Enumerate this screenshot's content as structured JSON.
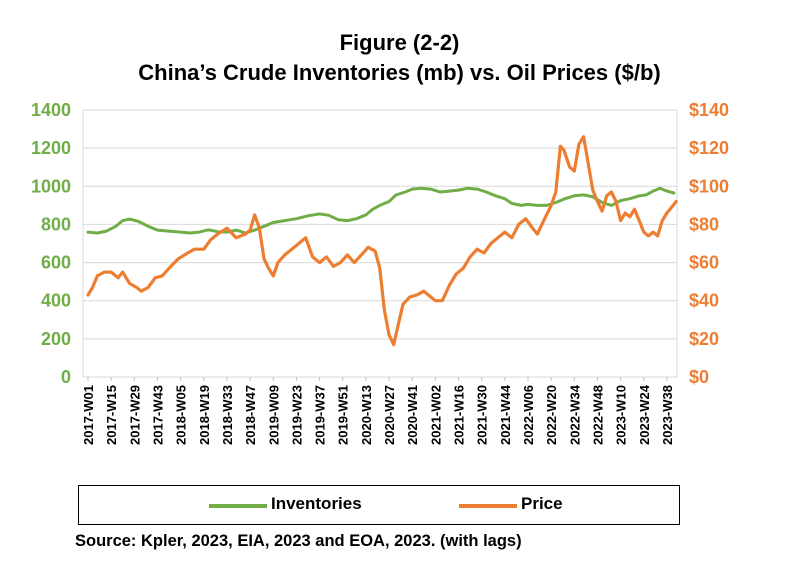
{
  "title": "Figure (2-2)",
  "subtitle": "China’s Crude Inventories (mb) vs. Oil Prices ($/b)",
  "source": "Source: Kpler, 2023, EIA, 2023 and EOA, 2023.  (with lags)",
  "colors": {
    "inventories": "#70AD47",
    "price": "#ED7D31",
    "grid": "#D9D9D9"
  },
  "chart_data": {
    "type": "line",
    "categories": [
      "2017-W01",
      "2017-W15",
      "2017-W29",
      "2017-W43",
      "2018-W05",
      "2018-W19",
      "2018-W33",
      "2018-W47",
      "2019-W09",
      "2019-W23",
      "2019-W37",
      "2019-W51",
      "2020-W13",
      "2020-W27",
      "2020-W41",
      "2021-W02",
      "2021-W16",
      "2021-W30",
      "2021-W44",
      "2022-W06",
      "2022-W20",
      "2022-W34",
      "2022-W48",
      "2023-W10",
      "2023-W24",
      "2023-W38"
    ],
    "y_left": {
      "ticks": [
        "0",
        "200",
        "400",
        "600",
        "800",
        "1000",
        "1200",
        "1400"
      ],
      "range": [
        0,
        1400
      ],
      "color": "#70AD47"
    },
    "y_right": {
      "ticks": [
        "$0",
        "$20",
        "$40",
        "$60",
        "$80",
        "$100",
        "$120",
        "$140"
      ],
      "range": [
        0,
        140
      ],
      "color": "#ED7D31"
    },
    "grid": true,
    "legend_position": "bottom",
    "series": [
      {
        "name": "Inventories",
        "axis": "left",
        "color": "#70AD47",
        "points": [
          [
            0,
            760
          ],
          [
            0.4,
            755
          ],
          [
            0.8,
            765
          ],
          [
            1.2,
            790
          ],
          [
            1.5,
            820
          ],
          [
            1.8,
            828
          ],
          [
            2.2,
            815
          ],
          [
            2.6,
            790
          ],
          [
            3.0,
            770
          ],
          [
            3.5,
            765
          ],
          [
            4.0,
            760
          ],
          [
            4.4,
            755
          ],
          [
            4.8,
            760
          ],
          [
            5.2,
            772
          ],
          [
            5.6,
            762
          ],
          [
            6.0,
            760
          ],
          [
            6.4,
            770
          ],
          [
            6.8,
            755
          ],
          [
            7.2,
            770
          ],
          [
            7.6,
            790
          ],
          [
            8.0,
            810
          ],
          [
            8.5,
            820
          ],
          [
            9.0,
            830
          ],
          [
            9.5,
            845
          ],
          [
            10.0,
            855
          ],
          [
            10.4,
            848
          ],
          [
            10.8,
            825
          ],
          [
            11.2,
            820
          ],
          [
            11.6,
            830
          ],
          [
            12.0,
            850
          ],
          [
            12.3,
            880
          ],
          [
            12.6,
            900
          ],
          [
            13.0,
            920
          ],
          [
            13.3,
            955
          ],
          [
            13.7,
            970
          ],
          [
            14.0,
            985
          ],
          [
            14.4,
            990
          ],
          [
            14.8,
            985
          ],
          [
            15.2,
            970
          ],
          [
            15.6,
            975
          ],
          [
            16.0,
            980
          ],
          [
            16.4,
            990
          ],
          [
            16.8,
            985
          ],
          [
            17.2,
            970
          ],
          [
            17.6,
            950
          ],
          [
            18.0,
            935
          ],
          [
            18.3,
            910
          ],
          [
            18.7,
            900
          ],
          [
            19.0,
            905
          ],
          [
            19.4,
            900
          ],
          [
            19.8,
            900
          ],
          [
            20.2,
            915
          ],
          [
            20.6,
            935
          ],
          [
            21.0,
            950
          ],
          [
            21.4,
            955
          ],
          [
            21.8,
            945
          ],
          [
            22.2,
            915
          ],
          [
            22.6,
            900
          ],
          [
            23.0,
            925
          ],
          [
            23.4,
            935
          ],
          [
            23.8,
            950
          ],
          [
            24.1,
            955
          ],
          [
            24.4,
            975
          ],
          [
            24.7,
            990
          ],
          [
            25.0,
            975
          ],
          [
            25.3,
            965
          ]
        ]
      },
      {
        "name": "Price",
        "axis": "right",
        "color": "#ED7D31",
        "points": [
          [
            0,
            43
          ],
          [
            0.2,
            47
          ],
          [
            0.4,
            53
          ],
          [
            0.7,
            55
          ],
          [
            1.0,
            55
          ],
          [
            1.3,
            52
          ],
          [
            1.5,
            55
          ],
          [
            1.8,
            49
          ],
          [
            2.1,
            47
          ],
          [
            2.3,
            45
          ],
          [
            2.6,
            47
          ],
          [
            2.9,
            52
          ],
          [
            3.2,
            53
          ],
          [
            3.5,
            57
          ],
          [
            3.9,
            62
          ],
          [
            4.3,
            65
          ],
          [
            4.6,
            67
          ],
          [
            5.0,
            67
          ],
          [
            5.3,
            72
          ],
          [
            5.6,
            75
          ],
          [
            6.0,
            78
          ],
          [
            6.4,
            73
          ],
          [
            6.8,
            75
          ],
          [
            7.0,
            77
          ],
          [
            7.2,
            85
          ],
          [
            7.4,
            78
          ],
          [
            7.6,
            62
          ],
          [
            7.8,
            57
          ],
          [
            8.0,
            53
          ],
          [
            8.2,
            60
          ],
          [
            8.5,
            64
          ],
          [
            8.8,
            67
          ],
          [
            9.1,
            70
          ],
          [
            9.4,
            73
          ],
          [
            9.7,
            63
          ],
          [
            10.0,
            60
          ],
          [
            10.3,
            63
          ],
          [
            10.6,
            58
          ],
          [
            10.9,
            60
          ],
          [
            11.2,
            64
          ],
          [
            11.5,
            60
          ],
          [
            11.8,
            64
          ],
          [
            12.1,
            68
          ],
          [
            12.4,
            66
          ],
          [
            12.6,
            57
          ],
          [
            12.8,
            35
          ],
          [
            13.0,
            22
          ],
          [
            13.2,
            17
          ],
          [
            13.35,
            25
          ],
          [
            13.6,
            38
          ],
          [
            13.9,
            42
          ],
          [
            14.2,
            43
          ],
          [
            14.5,
            45
          ],
          [
            14.8,
            42
          ],
          [
            15.0,
            40
          ],
          [
            15.3,
            40
          ],
          [
            15.6,
            48
          ],
          [
            15.9,
            54
          ],
          [
            16.2,
            57
          ],
          [
            16.5,
            63
          ],
          [
            16.8,
            67
          ],
          [
            17.1,
            65
          ],
          [
            17.4,
            70
          ],
          [
            17.7,
            73
          ],
          [
            18.0,
            76
          ],
          [
            18.3,
            73
          ],
          [
            18.6,
            80
          ],
          [
            18.9,
            83
          ],
          [
            19.2,
            78
          ],
          [
            19.4,
            75
          ],
          [
            19.6,
            80
          ],
          [
            19.8,
            85
          ],
          [
            20.0,
            90
          ],
          [
            20.2,
            97
          ],
          [
            20.4,
            121
          ],
          [
            20.55,
            119
          ],
          [
            20.8,
            110
          ],
          [
            21.0,
            108
          ],
          [
            21.2,
            122
          ],
          [
            21.4,
            126
          ],
          [
            21.6,
            112
          ],
          [
            21.8,
            98
          ],
          [
            22.0,
            92
          ],
          [
            22.2,
            87
          ],
          [
            22.4,
            95
          ],
          [
            22.6,
            97
          ],
          [
            22.8,
            92
          ],
          [
            23.0,
            82
          ],
          [
            23.2,
            86
          ],
          [
            23.4,
            84
          ],
          [
            23.6,
            88
          ],
          [
            23.8,
            82
          ],
          [
            24.0,
            76
          ],
          [
            24.2,
            74
          ],
          [
            24.4,
            76
          ],
          [
            24.6,
            74
          ],
          [
            24.8,
            82
          ],
          [
            25.0,
            86
          ],
          [
            25.2,
            89
          ],
          [
            25.4,
            92
          ]
        ]
      }
    ]
  },
  "legend": {
    "inventories": "Inventories",
    "price": "Price"
  }
}
